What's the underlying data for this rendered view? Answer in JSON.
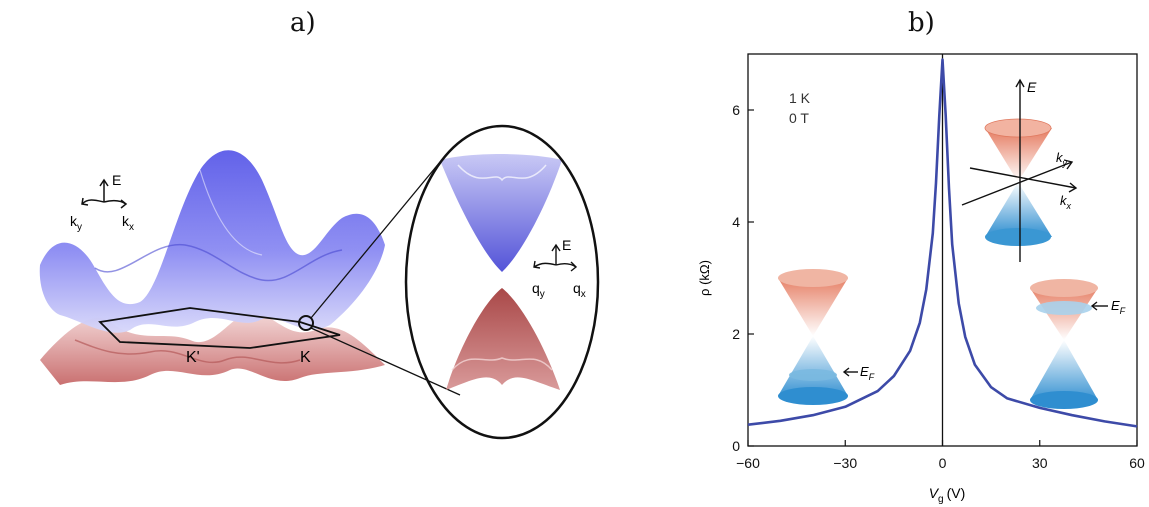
{
  "panel_a": {
    "label": "a)",
    "energy_axis": "E",
    "ky_label": "k",
    "ky_sub": "y",
    "kx_label": "k",
    "kx_sub": "x",
    "k_prime_label": "K'",
    "k_label": "K",
    "zoom_energy_axis": "E",
    "qy_label": "q",
    "qy_sub": "y",
    "qx_label": "q",
    "qx_sub": "x",
    "colors": {
      "conduction": "#6f6ff0",
      "valence": "#d07878",
      "outline": "#111111"
    }
  },
  "panel_b": {
    "label": "b)",
    "temperature": "1 K",
    "field": "0 T",
    "inset_top": {
      "energy": "E",
      "ky": "k",
      "ky_sub": "y",
      "kx": "k",
      "kx_sub": "x"
    },
    "inset_left": {
      "fermi": "E",
      "fermi_sub": "F"
    },
    "inset_right": {
      "fermi": "E",
      "fermi_sub": "F"
    },
    "colors": {
      "curve": "#3d4aa8",
      "cone_top": "#e8836a",
      "cone_bottom": "#3a97d3"
    }
  },
  "chart_data": {
    "type": "line",
    "xlabel": "V",
    "xlabel_sub": "g",
    "xlabel_unit": "(V)",
    "ylabel": "ρ (kΩ)",
    "xlim": [
      -60,
      60
    ],
    "ylim": [
      0,
      7
    ],
    "xticks": [
      -60,
      -30,
      0,
      30,
      60
    ],
    "yticks": [
      0,
      2,
      4,
      6
    ],
    "grid": false,
    "series": [
      {
        "x": [
          -60,
          -50,
          -40,
          -30,
          -20,
          -15,
          -10,
          -7,
          -5,
          -3,
          -2,
          -1,
          0,
          1,
          2,
          3,
          5,
          7,
          10,
          15,
          20,
          30,
          40,
          50,
          60
        ],
        "y": [
          0.38,
          0.45,
          0.55,
          0.7,
          0.98,
          1.25,
          1.7,
          2.2,
          2.8,
          3.8,
          4.7,
          5.9,
          6.9,
          5.9,
          4.6,
          3.6,
          2.55,
          1.95,
          1.45,
          1.05,
          0.85,
          0.68,
          0.55,
          0.44,
          0.35
        ]
      }
    ]
  }
}
